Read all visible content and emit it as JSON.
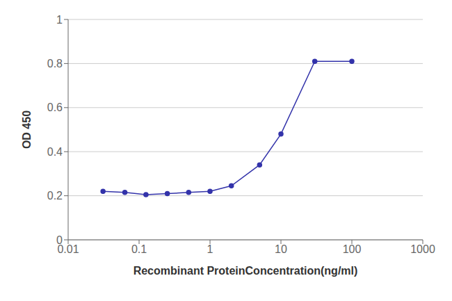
{
  "chart_data": {
    "type": "line",
    "xlabel": "Recombinant ProteinConcentration(ng/ml)",
    "ylabel": "OD 450",
    "x": [
      0.031,
      0.063,
      0.125,
      0.25,
      0.5,
      1.0,
      2.0,
      5.0,
      10.0,
      30.0,
      100.0
    ],
    "values": [
      0.22,
      0.215,
      0.205,
      0.21,
      0.215,
      0.22,
      0.245,
      0.34,
      0.48,
      0.81,
      0.81
    ],
    "color": "#3333aa",
    "marker": "circle",
    "log": "x",
    "xlim": [
      0.01,
      1000
    ],
    "xticks": [
      0.01,
      0.1,
      1,
      10,
      100,
      1000
    ],
    "ylim": [
      0,
      1
    ],
    "yticks": [
      0,
      0.2,
      0.4,
      0.6,
      0.8,
      1
    ],
    "grid": "y"
  }
}
